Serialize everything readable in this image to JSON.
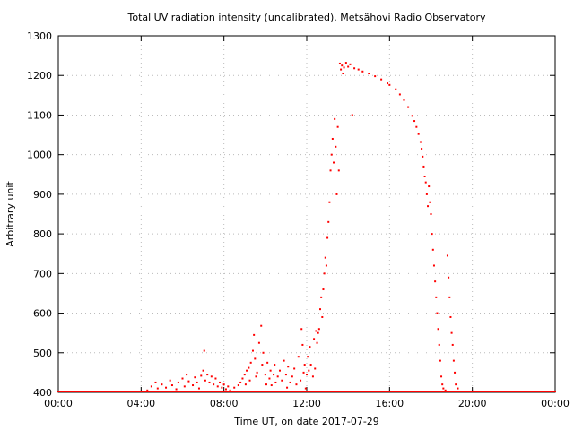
{
  "chart_data": {
    "type": "scatter",
    "title": "Total UV radiation intensity (uncalibrated). Metsähovi Radio Observatory",
    "xlabel": "Time UT, on date 2017-07-29",
    "ylabel": "Arbitrary unit",
    "xlim": [
      0,
      24
    ],
    "ylim": [
      400,
      1300
    ],
    "xticks": [
      0,
      4,
      8,
      12,
      16,
      20,
      24
    ],
    "xtick_labels": [
      "00:00",
      "04:00",
      "08:00",
      "12:00",
      "16:00",
      "20:00",
      "00:00"
    ],
    "yticks": [
      400,
      500,
      600,
      700,
      800,
      900,
      1000,
      1100,
      1200,
      1300
    ],
    "grid": true,
    "marker_color": "#ff0000",
    "series": [
      {
        "points_hours": [
          [
            4.3,
            405
          ],
          [
            4.5,
            415
          ],
          [
            4.7,
            425
          ],
          [
            4.8,
            410
          ],
          [
            5.0,
            420
          ],
          [
            5.2,
            412
          ],
          [
            5.4,
            430
          ],
          [
            5.5,
            418
          ],
          [
            5.7,
            408
          ],
          [
            5.8,
            425
          ],
          [
            6.0,
            435
          ],
          [
            6.1,
            415
          ],
          [
            6.2,
            445
          ],
          [
            6.3,
            428
          ],
          [
            6.5,
            418
          ],
          [
            6.6,
            438
          ],
          [
            6.7,
            425
          ],
          [
            6.8,
            410
          ],
          [
            6.9,
            442
          ],
          [
            7.0,
            455
          ],
          [
            7.05,
            505
          ],
          [
            7.1,
            430
          ],
          [
            7.2,
            445
          ],
          [
            7.3,
            425
          ],
          [
            7.4,
            440
          ],
          [
            7.5,
            420
          ],
          [
            7.6,
            435
          ],
          [
            7.7,
            415
          ],
          [
            7.8,
            425
          ],
          [
            7.9,
            412
          ],
          [
            8.0,
            420
          ],
          [
            8.1,
            408
          ],
          [
            8.2,
            415
          ],
          [
            8.3,
            405
          ],
          [
            8.5,
            412
          ],
          [
            8.7,
            418
          ],
          [
            8.8,
            425
          ],
          [
            8.9,
            435
          ],
          [
            9.0,
            445
          ],
          [
            9.05,
            420
          ],
          [
            9.1,
            455
          ],
          [
            9.2,
            462
          ],
          [
            9.25,
            430
          ],
          [
            9.3,
            475
          ],
          [
            9.4,
            505
          ],
          [
            9.45,
            545
          ],
          [
            9.5,
            485
          ],
          [
            9.55,
            440
          ],
          [
            9.6,
            450
          ],
          [
            9.7,
            525
          ],
          [
            9.8,
            568
          ],
          [
            9.85,
            470
          ],
          [
            9.9,
            500
          ],
          [
            10.0,
            445
          ],
          [
            10.05,
            420
          ],
          [
            10.1,
            475
          ],
          [
            10.2,
            435
          ],
          [
            10.25,
            455
          ],
          [
            10.3,
            418
          ],
          [
            10.4,
            445
          ],
          [
            10.45,
            470
          ],
          [
            10.5,
            425
          ],
          [
            10.6,
            440
          ],
          [
            10.7,
            455
          ],
          [
            10.8,
            430
          ],
          [
            10.9,
            480
          ],
          [
            11.0,
            445
          ],
          [
            11.05,
            412
          ],
          [
            11.1,
            465
          ],
          [
            11.2,
            425
          ],
          [
            11.3,
            440
          ],
          [
            11.4,
            460
          ],
          [
            11.5,
            420
          ],
          [
            11.6,
            490
          ],
          [
            11.7,
            430
          ],
          [
            11.75,
            560
          ],
          [
            11.8,
            520
          ],
          [
            11.85,
            450
          ],
          [
            11.9,
            470
          ],
          [
            11.95,
            410
          ],
          [
            12.0,
            445
          ],
          [
            12.05,
            490
          ],
          [
            12.1,
            455
          ],
          [
            12.15,
            515
          ],
          [
            12.2,
            470
          ],
          [
            12.3,
            440
          ],
          [
            12.35,
            535
          ],
          [
            12.4,
            460
          ],
          [
            12.45,
            555
          ],
          [
            12.5,
            525
          ],
          [
            12.55,
            550
          ],
          [
            12.6,
            560
          ],
          [
            12.65,
            610
          ],
          [
            12.7,
            640
          ],
          [
            12.75,
            590
          ],
          [
            12.8,
            660
          ],
          [
            12.85,
            700
          ],
          [
            12.9,
            740
          ],
          [
            12.95,
            720
          ],
          [
            13.0,
            790
          ],
          [
            13.05,
            830
          ],
          [
            13.1,
            880
          ],
          [
            13.15,
            960
          ],
          [
            13.2,
            1000
          ],
          [
            13.25,
            1040
          ],
          [
            13.3,
            980
          ],
          [
            13.35,
            1090
          ],
          [
            13.4,
            1020
          ],
          [
            13.45,
            900
          ],
          [
            13.5,
            1070
          ],
          [
            13.55,
            960
          ],
          [
            13.6,
            1230
          ],
          [
            13.65,
            1215
          ],
          [
            13.7,
            1225
          ],
          [
            13.75,
            1205
          ],
          [
            13.8,
            1220
          ],
          [
            13.9,
            1232
          ],
          [
            14.0,
            1222
          ],
          [
            14.1,
            1228
          ],
          [
            14.2,
            1100
          ],
          [
            14.3,
            1218
          ],
          [
            14.5,
            1215
          ],
          [
            14.7,
            1210
          ],
          [
            15.0,
            1205
          ],
          [
            15.3,
            1198
          ],
          [
            15.6,
            1190
          ],
          [
            15.9,
            1180
          ],
          [
            16.0,
            1176
          ],
          [
            16.3,
            1165
          ],
          [
            16.5,
            1152
          ],
          [
            16.7,
            1138
          ],
          [
            16.9,
            1120
          ],
          [
            17.1,
            1098
          ],
          [
            17.2,
            1085
          ],
          [
            17.3,
            1070
          ],
          [
            17.4,
            1052
          ],
          [
            17.5,
            1032
          ],
          [
            17.55,
            1015
          ],
          [
            17.6,
            995
          ],
          [
            17.65,
            970
          ],
          [
            17.7,
            945
          ],
          [
            17.75,
            930
          ],
          [
            17.8,
            900
          ],
          [
            17.85,
            870
          ],
          [
            17.9,
            920
          ],
          [
            17.95,
            880
          ],
          [
            18.0,
            850
          ],
          [
            18.05,
            800
          ],
          [
            18.1,
            760
          ],
          [
            18.15,
            720
          ],
          [
            18.2,
            680
          ],
          [
            18.25,
            640
          ],
          [
            18.3,
            600
          ],
          [
            18.35,
            560
          ],
          [
            18.4,
            520
          ],
          [
            18.45,
            480
          ],
          [
            18.5,
            440
          ],
          [
            18.55,
            420
          ],
          [
            18.6,
            410
          ],
          [
            18.7,
            405
          ],
          [
            18.8,
            745
          ],
          [
            18.85,
            690
          ],
          [
            18.9,
            640
          ],
          [
            18.95,
            590
          ],
          [
            19.0,
            550
          ],
          [
            19.05,
            520
          ],
          [
            19.1,
            480
          ],
          [
            19.15,
            450
          ],
          [
            19.2,
            420
          ],
          [
            19.3,
            410
          ]
        ]
      }
    ]
  }
}
